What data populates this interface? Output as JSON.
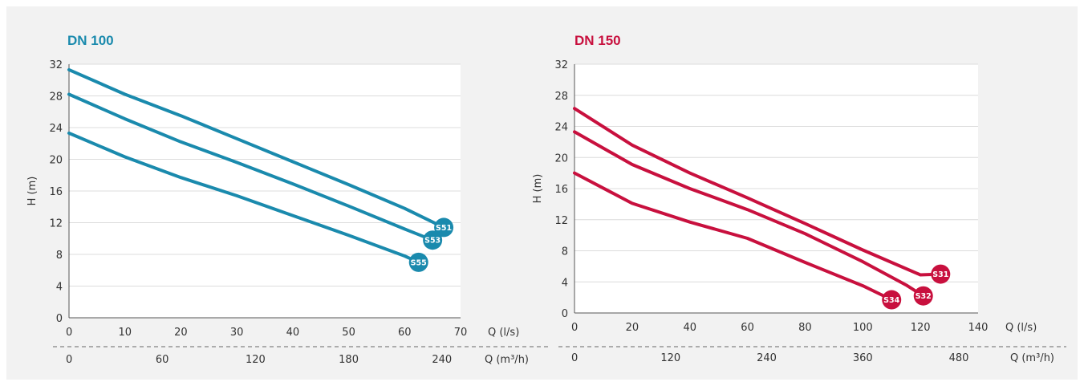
{
  "chart_data": [
    {
      "type": "line",
      "title": "DN 100",
      "color": "#1a8aad",
      "ylabel": "H (m)",
      "xlabel": "Q (l/s)",
      "xlim": [
        0,
        70
      ],
      "ylim": [
        0,
        32
      ],
      "xticks": [
        0,
        10,
        20,
        30,
        40,
        50,
        60,
        70
      ],
      "yticks": [
        0,
        4,
        8,
        12,
        16,
        20,
        24,
        28,
        32
      ],
      "secondary_x": {
        "label": "Q (m³/h)",
        "ticks": [
          0,
          60,
          120,
          180,
          240
        ],
        "factor": 3.6
      },
      "grid": true,
      "series": [
        {
          "name": "S51",
          "x": [
            0,
            10,
            20,
            30,
            40,
            50,
            60,
            67
          ],
          "y": [
            31.3,
            28.2,
            25.5,
            22.6,
            19.7,
            16.8,
            13.8,
            11.4
          ]
        },
        {
          "name": "S53",
          "x": [
            0,
            10,
            20,
            30,
            40,
            50,
            60,
            65
          ],
          "y": [
            28.2,
            25.1,
            22.2,
            19.6,
            16.9,
            14.1,
            11.2,
            9.8
          ]
        },
        {
          "name": "S55",
          "x": [
            0,
            10,
            20,
            30,
            40,
            50,
            60,
            62.5
          ],
          "y": [
            23.3,
            20.3,
            17.7,
            15.4,
            12.9,
            10.4,
            7.8,
            7.0
          ]
        }
      ]
    },
    {
      "type": "line",
      "title": "DN 150",
      "color": "#c8103e",
      "ylabel": "H (m)",
      "xlabel": "Q (l/s)",
      "xlim": [
        0,
        140
      ],
      "ylim": [
        0,
        32
      ],
      "xticks": [
        0,
        20,
        40,
        60,
        80,
        100,
        120,
        140
      ],
      "yticks": [
        0,
        4,
        8,
        12,
        16,
        20,
        24,
        28,
        32
      ],
      "secondary_x": {
        "label": "Q (m³/h)",
        "ticks": [
          0,
          120,
          240,
          360,
          480
        ],
        "factor": 3.6
      },
      "grid": true,
      "series": [
        {
          "name": "S31",
          "x": [
            0,
            20,
            40,
            60,
            80,
            100,
            120,
            127
          ],
          "y": [
            26.3,
            21.6,
            18.0,
            14.8,
            11.5,
            8.1,
            4.9,
            5.0
          ]
        },
        {
          "name": "S32",
          "x": [
            0,
            20,
            40,
            60,
            80,
            100,
            115,
            121
          ],
          "y": [
            23.3,
            19.1,
            16.0,
            13.3,
            10.2,
            6.6,
            3.6,
            2.2
          ]
        },
        {
          "name": "S34",
          "x": [
            0,
            20,
            40,
            60,
            80,
            100,
            110
          ],
          "y": [
            18.0,
            14.1,
            11.7,
            9.6,
            6.5,
            3.5,
            1.7
          ]
        }
      ]
    }
  ]
}
